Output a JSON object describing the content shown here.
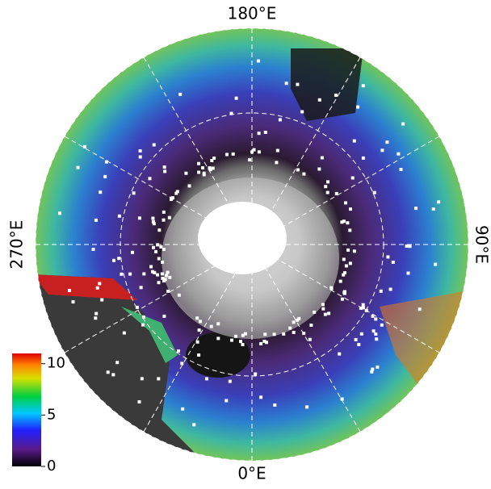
{
  "map": {
    "longitude_labels": {
      "top": "180°E",
      "right": "90°E",
      "left": "270°E",
      "bottom": "0°E"
    },
    "colorbar": {
      "lim": [
        0,
        11
      ],
      "ticks": [
        0,
        5,
        10
      ]
    }
  }
}
